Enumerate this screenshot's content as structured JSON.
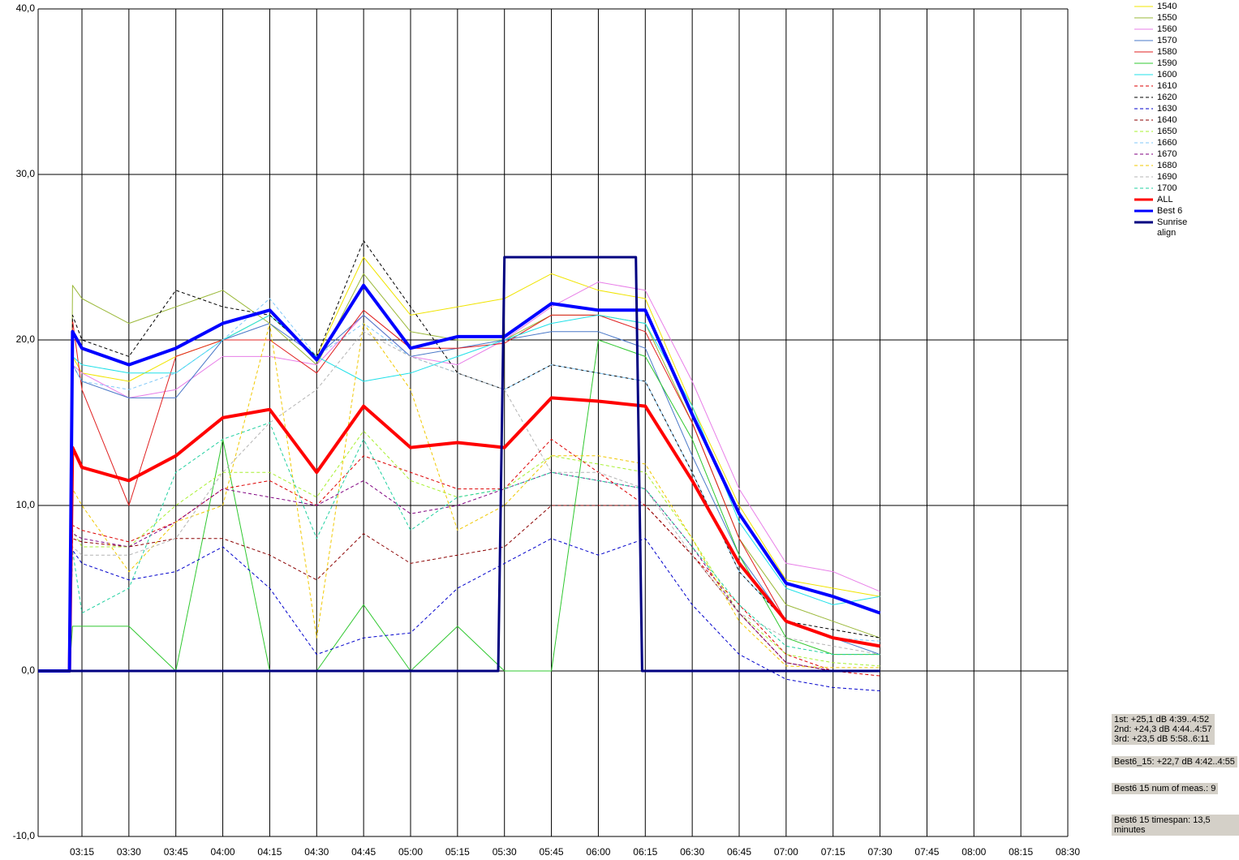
{
  "chart_data": {
    "type": "line",
    "x": [
      "03:01",
      "03:11",
      "03:12",
      "03:15",
      "03:30",
      "03:45",
      "04:00",
      "04:15",
      "04:30",
      "04:45",
      "05:00",
      "05:15",
      "05:30",
      "05:45",
      "06:00",
      "06:15",
      "06:30",
      "06:45",
      "07:00",
      "07:15",
      "07:30"
    ],
    "xlim": [
      "03:01",
      "08:30"
    ],
    "xticks": [
      "03:15",
      "03:30",
      "03:45",
      "04:00",
      "04:15",
      "04:30",
      "04:45",
      "05:00",
      "05:15",
      "05:30",
      "05:45",
      "06:00",
      "06:15",
      "06:30",
      "06:45",
      "07:00",
      "07:15",
      "07:30",
      "07:45",
      "08:00",
      "08:15",
      "08:30"
    ],
    "ylim": [
      -10,
      40
    ],
    "yticks": [
      {
        "value": -10,
        "label": "-10,0"
      },
      {
        "value": 0,
        "label": "0,0"
      },
      {
        "value": 10,
        "label": "10,0"
      },
      {
        "value": 20,
        "label": "20,0"
      },
      {
        "value": 30,
        "label": "30,0"
      },
      {
        "value": 40,
        "label": "40,0"
      }
    ],
    "grid": true,
    "legend": "right",
    "series": [
      {
        "name": "1540",
        "color": "#f0e400",
        "style": "thin",
        "values": [
          0,
          0,
          19,
          18,
          17.5,
          19,
          20,
          21.5,
          19,
          25,
          21.5,
          22,
          22.5,
          24,
          23,
          22.5,
          16,
          10,
          5.5,
          5,
          4.5
        ]
      },
      {
        "name": "1550",
        "color": "#9ab838",
        "style": "thin",
        "values": [
          0,
          0,
          23.3,
          22.5,
          21,
          22,
          23,
          21,
          18.5,
          24,
          20.5,
          20,
          20,
          21.5,
          21.5,
          21,
          15,
          8,
          4,
          3,
          2
        ]
      },
      {
        "name": "1560",
        "color": "#e87ee8",
        "style": "thin",
        "values": [
          0,
          0,
          18.5,
          18,
          16.5,
          17,
          19,
          19,
          18.5,
          21.5,
          19,
          18.5,
          20,
          22,
          23.5,
          23,
          17.5,
          11,
          6.5,
          6,
          4.8
        ]
      },
      {
        "name": "1570",
        "color": "#4a78c8",
        "style": "thin",
        "values": [
          0,
          0,
          18.5,
          17.5,
          16.5,
          16.5,
          20,
          21,
          19,
          21.5,
          19,
          19.5,
          20,
          20.5,
          20.5,
          19.5,
          13,
          7,
          3,
          2,
          1
        ]
      },
      {
        "name": "1580",
        "color": "#e02020",
        "style": "thin",
        "values": [
          0,
          0,
          21.2,
          17,
          10,
          19,
          20,
          20,
          18,
          21.8,
          19.5,
          19.5,
          19.8,
          21.5,
          21.5,
          20.5,
          15,
          8,
          3,
          2,
          1.5
        ]
      },
      {
        "name": "1590",
        "color": "#30c830",
        "style": "thin",
        "values": [
          0,
          0,
          2.7,
          2.7,
          2.7,
          0,
          14,
          0,
          0,
          4,
          0,
          2.7,
          0,
          0,
          20,
          19,
          14,
          7,
          2,
          1,
          1
        ]
      },
      {
        "name": "1600",
        "color": "#20e0e8",
        "style": "thin",
        "values": [
          0,
          0,
          19,
          18.5,
          18,
          18,
          20,
          21.5,
          19,
          17.5,
          18,
          19,
          20,
          21,
          21.5,
          21,
          16,
          9,
          5,
          4,
          4.5
        ]
      },
      {
        "name": "1610",
        "color": "#dd0000",
        "style": "dashed",
        "values": [
          0,
          0,
          8.8,
          8.5,
          7.8,
          9,
          11,
          11.5,
          10,
          13,
          12,
          11,
          11,
          14,
          12,
          10,
          7,
          4,
          1,
          0,
          -0.3
        ]
      },
      {
        "name": "1620",
        "color": "#000000",
        "style": "dashed",
        "values": [
          0,
          0,
          21.5,
          20,
          19,
          23,
          22,
          21.5,
          19,
          26,
          22,
          18,
          17,
          18.5,
          18,
          17.5,
          12,
          6,
          3,
          2.5,
          2
        ]
      },
      {
        "name": "1630",
        "color": "#0000cc",
        "style": "dashed",
        "values": [
          0,
          0,
          7.3,
          6.5,
          5.5,
          6,
          7.5,
          5,
          1,
          2,
          2.3,
          5,
          6.5,
          8,
          7,
          8,
          4,
          1,
          -0.5,
          -1,
          -1.2
        ]
      },
      {
        "name": "1640",
        "color": "#8b0000",
        "style": "dashed",
        "values": [
          0,
          0,
          8,
          7.8,
          7.5,
          8,
          8,
          7,
          5.5,
          8.3,
          6.5,
          7,
          7.5,
          10,
          10,
          10,
          7,
          3.5,
          0.5,
          0,
          0
        ]
      },
      {
        "name": "1650",
        "color": "#a8f030",
        "style": "dashed",
        "values": [
          0,
          0,
          8.5,
          7.5,
          7.5,
          10,
          12,
          12,
          10.5,
          14.5,
          11.5,
          10.5,
          11,
          13,
          12.5,
          12,
          8,
          3.5,
          1,
          0.5,
          0.3
        ]
      },
      {
        "name": "1660",
        "color": "#80c8f8",
        "style": "dashed",
        "values": [
          0,
          0,
          18.5,
          17.5,
          17,
          18,
          20,
          22.5,
          19,
          21,
          19,
          18,
          17,
          18.5,
          18,
          17.5,
          12,
          6,
          3,
          2,
          1.8
        ]
      },
      {
        "name": "1670",
        "color": "#800080",
        "style": "dashed",
        "values": [
          0,
          0,
          8.3,
          8,
          7.5,
          9,
          11,
          10.5,
          10,
          11.5,
          9.5,
          10,
          11,
          12,
          11.5,
          11,
          7.5,
          3.5,
          0.5,
          0,
          0
        ]
      },
      {
        "name": "1680",
        "color": "#f0c800",
        "style": "dashed",
        "values": [
          0,
          0,
          11,
          10,
          6,
          9,
          10,
          21,
          2,
          21,
          17,
          8.5,
          10,
          13,
          13,
          12.5,
          8,
          3,
          0.3,
          0.2,
          0.2
        ]
      },
      {
        "name": "1690",
        "color": "#b4b4b4",
        "style": "dashed",
        "values": [
          0,
          0,
          7.5,
          7,
          7,
          8,
          12,
          15,
          17,
          20.5,
          19,
          18,
          17,
          12,
          12,
          11,
          7,
          3.5,
          2,
          1.5,
          1
        ]
      },
      {
        "name": "1700",
        "color": "#20d0a0",
        "style": "dashed",
        "values": [
          0,
          0,
          7.3,
          3.5,
          5,
          12,
          14,
          15,
          8,
          14,
          8.5,
          10.5,
          11,
          12,
          11.5,
          11,
          7.5,
          4,
          1.5,
          1,
          1
        ]
      },
      {
        "name": "ALL",
        "color": "#ff0000",
        "style": "thick",
        "values": [
          0,
          0,
          13.5,
          12.3,
          11.5,
          13,
          15.3,
          15.8,
          12,
          16,
          13.5,
          13.8,
          13.5,
          16.5,
          16.3,
          16,
          11.5,
          6.5,
          3,
          2,
          1.5
        ]
      },
      {
        "name": "Best 6",
        "color": "#0000ff",
        "style": "thick",
        "values": [
          0,
          0,
          20.5,
          19.5,
          18.5,
          19.5,
          21,
          21.8,
          18.8,
          23.3,
          19.5,
          20.2,
          20.2,
          22.2,
          21.8,
          21.8,
          15.5,
          9.5,
          5.3,
          4.5,
          3.5
        ]
      },
      {
        "name": "Sunrise align",
        "color": "#000080",
        "style": "medium",
        "x": [
          "03:01",
          "05:28",
          "05:30",
          "06:12",
          "06:14",
          "07:30"
        ],
        "values": [
          0,
          0,
          25,
          25,
          0,
          0
        ]
      }
    ],
    "annotations": [
      [
        "1st: +25,1 dB 4:39..4:52",
        "2nd: +24,3 dB 4:44..4:57",
        "3rd: +23,5 dB 5:58..6:11"
      ],
      [
        "Best6_15: +22,7 dB 4:42..4:55"
      ],
      [
        "Best6 15 num of meas.: 9"
      ],
      [
        "Best6 15 timespan: 13,5 minutes"
      ]
    ]
  }
}
